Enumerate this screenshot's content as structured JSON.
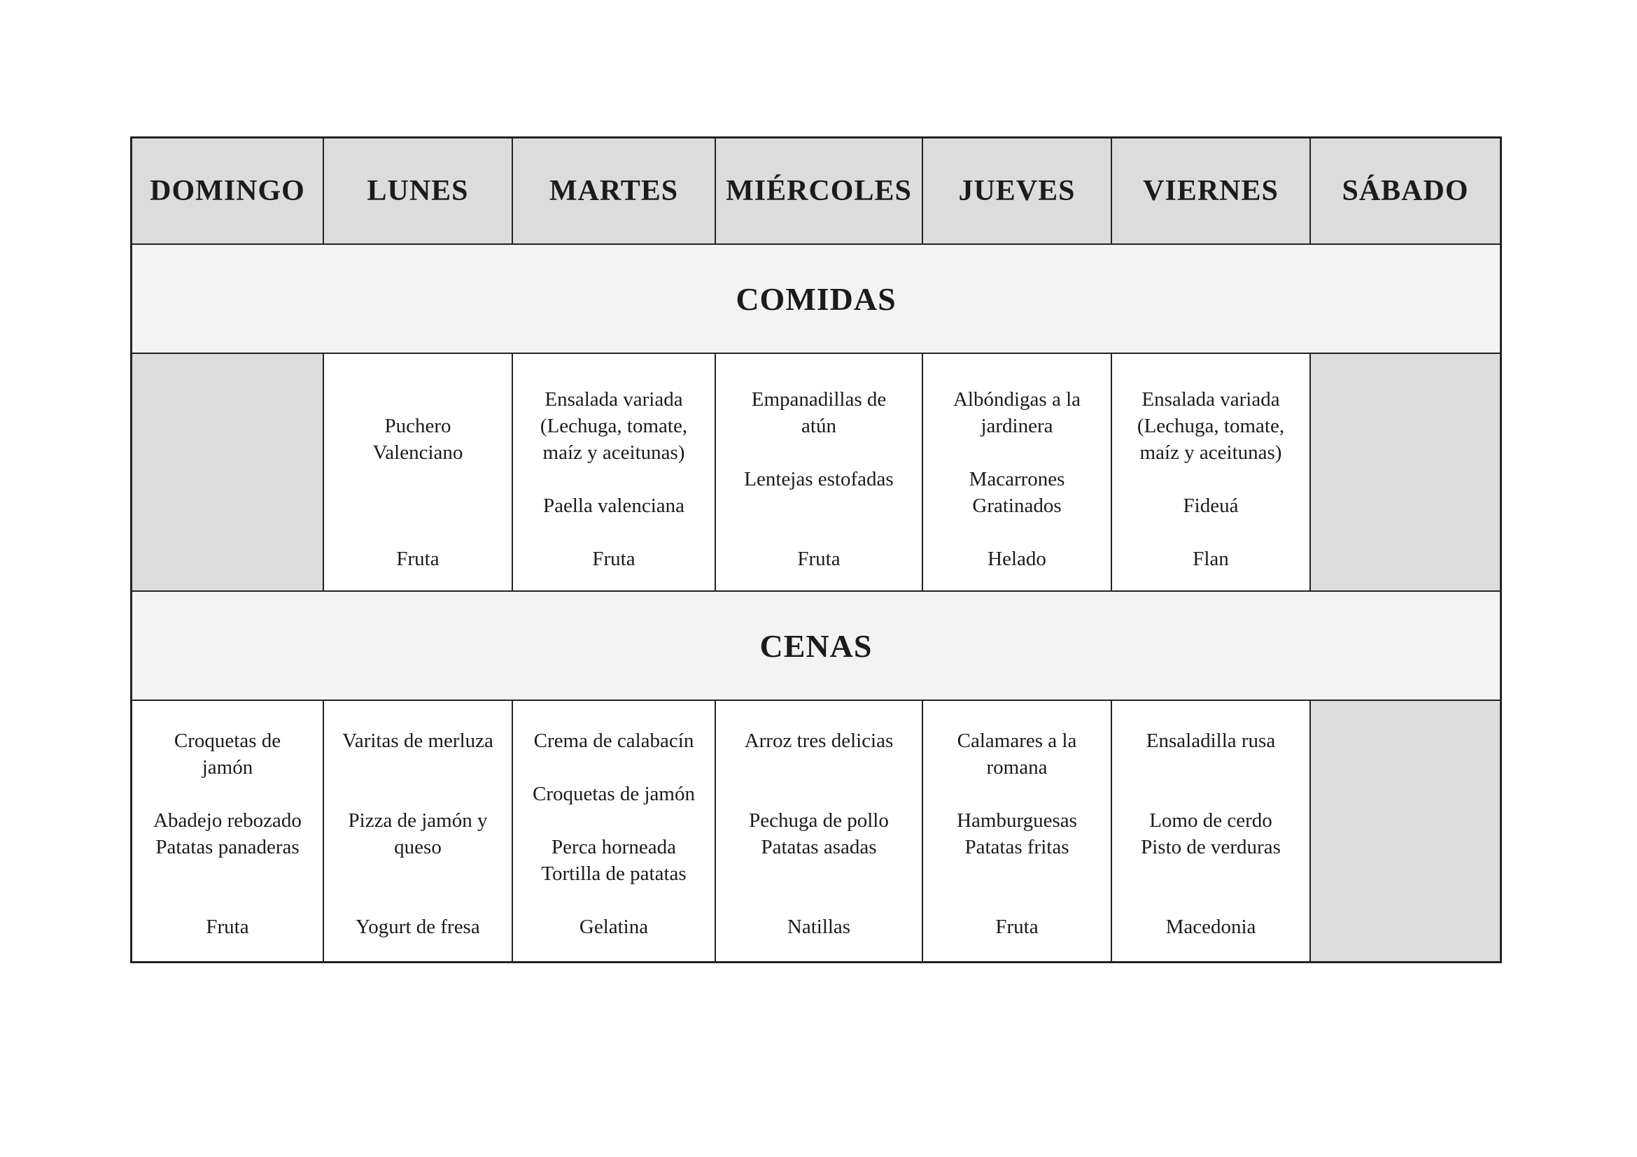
{
  "document": {
    "type": "weekly-school-menu",
    "language": "es"
  },
  "colors": {
    "page_bg": "#ffffff",
    "header_bg": "#dcdcdc",
    "empty_cell_bg": "#dcdcdc",
    "band_bg": "#f3f3f3",
    "border": "#232323",
    "text": "#1b1b1b"
  },
  "days": [
    "DOMINGO",
    "LUNES",
    "MARTES",
    "MIÉRCOLES",
    "JUEVES",
    "VIERNES",
    "SÁBADO"
  ],
  "day_keys": [
    "domingo",
    "lunes",
    "martes",
    "miercoles",
    "jueves",
    "viernes",
    "sabado"
  ],
  "sections": {
    "comidas": {
      "label": "COMIDAS"
    },
    "cenas": {
      "label": "CENAS"
    }
  },
  "comidas_cells": [
    {
      "empty": true,
      "lines": []
    },
    {
      "empty": false,
      "lines": [
        "",
        "Puchero",
        "Valenciano",
        "",
        "",
        "",
        "Fruta"
      ]
    },
    {
      "empty": false,
      "lines": [
        "Ensalada variada",
        "(Lechuga, tomate,",
        "maíz y aceitunas)",
        "",
        "Paella valenciana",
        "",
        "Fruta"
      ]
    },
    {
      "empty": false,
      "lines": [
        "Empanadillas de",
        "atún",
        "",
        "Lentejas estofadas",
        "",
        "",
        "Fruta"
      ]
    },
    {
      "empty": false,
      "lines": [
        "Albóndigas a la",
        "jardinera",
        "",
        "Macarrones",
        "Gratinados",
        "",
        "Helado"
      ]
    },
    {
      "empty": false,
      "lines": [
        "Ensalada variada",
        "(Lechuga, tomate,",
        "maíz y aceitunas)",
        "",
        "Fideuá",
        "",
        "Flan"
      ]
    },
    {
      "empty": true,
      "lines": []
    }
  ],
  "cenas_cells": [
    {
      "empty": false,
      "lines": [
        "Croquetas de",
        "jamón",
        "",
        "Abadejo rebozado",
        "Patatas panaderas",
        "",
        "",
        "Fruta"
      ]
    },
    {
      "empty": false,
      "lines": [
        "Varitas de merluza",
        "",
        "",
        "Pizza de jamón y",
        "queso",
        "",
        "",
        "Yogurt de fresa"
      ]
    },
    {
      "empty": false,
      "lines": [
        "Crema de calabacín",
        "",
        "Croquetas de jamón",
        "",
        "Perca horneada",
        "Tortilla de patatas",
        "",
        "Gelatina"
      ]
    },
    {
      "empty": false,
      "lines": [
        "Arroz tres delicias",
        "",
        "",
        "Pechuga de pollo",
        "Patatas asadas",
        "",
        "",
        "Natillas"
      ]
    },
    {
      "empty": false,
      "lines": [
        "Calamares a la",
        "romana",
        "",
        "Hamburguesas",
        "Patatas fritas",
        "",
        "",
        "Fruta"
      ]
    },
    {
      "empty": false,
      "lines": [
        "Ensaladilla rusa",
        "",
        "",
        "Lomo de cerdo",
        "Pisto de verduras",
        "",
        "",
        "Macedonia"
      ]
    },
    {
      "empty": true,
      "lines": []
    }
  ]
}
